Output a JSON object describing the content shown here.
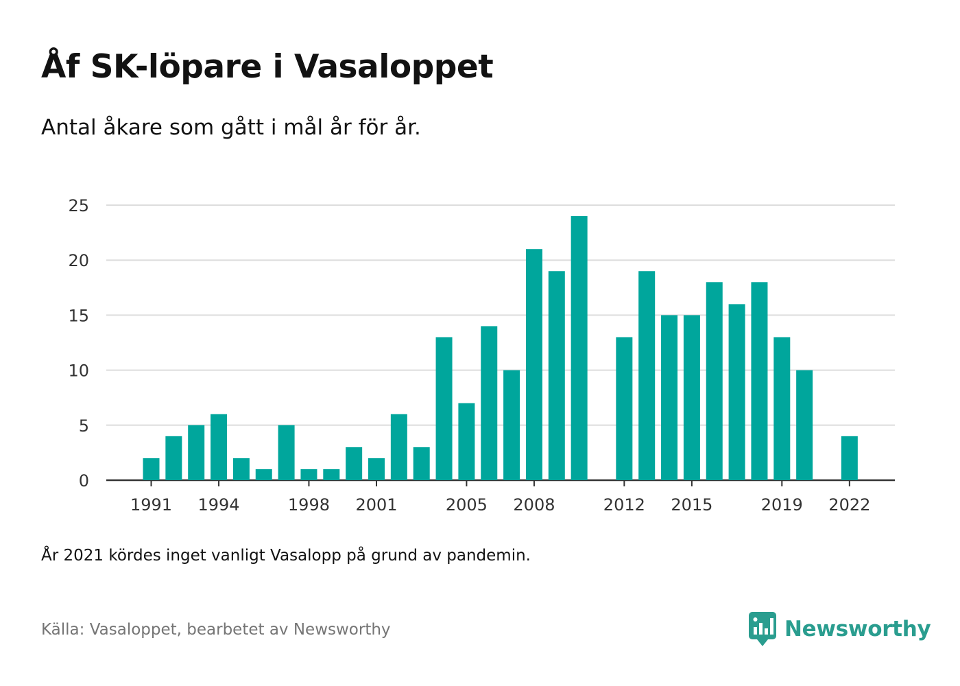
{
  "title": "Åf SK-löpare i Vasaloppet",
  "subtitle": "Antal åkare som gått i mål år för år.",
  "note": "År 2021 kördes inget vanligt Vasalopp på grund av pandemin.",
  "source": "Källa: Vasaloppet, bearbetet av Newsworthy",
  "brand": {
    "name": "Newsworthy",
    "icon": "newsworthy-logo-icon",
    "color": "#2a9d8f"
  },
  "colors": {
    "bar": "#00a69c",
    "grid": "#dddddd",
    "axis": "#333333"
  },
  "chart_data": {
    "type": "bar",
    "title": "Åf SK-löpare i Vasaloppet",
    "subtitle": "Antal åkare som gått i mål år för år.",
    "xlabel": "",
    "ylabel": "",
    "ylim": [
      0,
      25
    ],
    "yticks": [
      0,
      5,
      10,
      15,
      20,
      25
    ],
    "grid": true,
    "legend": "none",
    "categories": [
      1991,
      1992,
      1993,
      1994,
      1995,
      1996,
      1997,
      1998,
      1999,
      2000,
      2001,
      2002,
      2003,
      2004,
      2005,
      2006,
      2007,
      2008,
      2009,
      2010,
      2011,
      2012,
      2013,
      2014,
      2015,
      2016,
      2017,
      2018,
      2019,
      2020,
      2021,
      2022
    ],
    "values": [
      2,
      4,
      5,
      6,
      2,
      1,
      5,
      1,
      1,
      3,
      2,
      6,
      3,
      13,
      7,
      14,
      10,
      21,
      19,
      24,
      0,
      13,
      19,
      15,
      15,
      18,
      16,
      18,
      13,
      10,
      0,
      4
    ],
    "xtick_labels": [
      "1991",
      "1994",
      "1998",
      "2001",
      "2005",
      "2008",
      "2012",
      "2015",
      "2019",
      "2022"
    ]
  }
}
